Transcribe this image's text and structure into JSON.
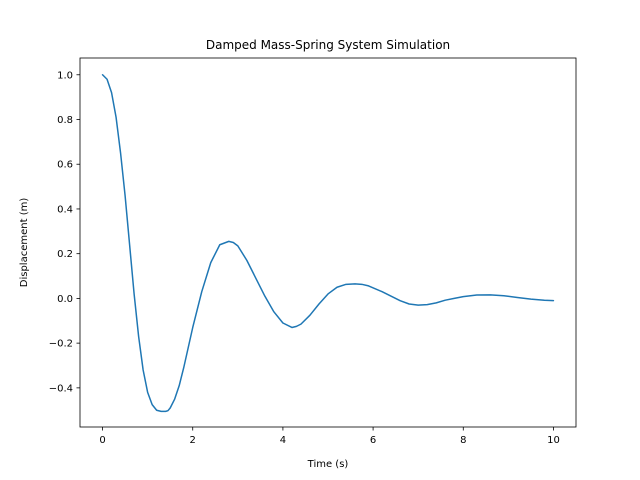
{
  "chart_data": {
    "type": "line",
    "title": "Damped Mass-Spring System Simulation",
    "xlabel": "Time (s)",
    "ylabel": "Displacement (m)",
    "xlim": [
      -0.5,
      10.5
    ],
    "ylim": [
      -0.575,
      1.075
    ],
    "xticks": [
      0,
      2,
      4,
      6,
      8,
      10
    ],
    "yticks": [
      -0.4,
      -0.2,
      0.0,
      0.2,
      0.4,
      0.6,
      0.8,
      1.0
    ],
    "xtick_labels": [
      "0",
      "2",
      "4",
      "6",
      "8",
      "10"
    ],
    "ytick_labels": [
      "−0.4",
      "−0.2",
      "0.0",
      "0.2",
      "0.4",
      "0.6",
      "0.8",
      "1.0"
    ],
    "grid": false,
    "line_color": "#1f77b4",
    "series": [
      {
        "x": [
          0,
          0.1,
          0.2,
          0.3,
          0.4,
          0.5,
          0.6,
          0.7,
          0.8,
          0.9,
          1.0,
          1.1,
          1.2,
          1.3,
          1.4,
          1.45,
          1.5,
          1.6,
          1.7,
          1.8,
          1.9,
          2.0,
          2.2,
          2.4,
          2.6,
          2.8,
          2.9,
          3.0,
          3.2,
          3.4,
          3.6,
          3.8,
          4.0,
          4.2,
          4.3,
          4.4,
          4.6,
          4.8,
          5.0,
          5.2,
          5.4,
          5.6,
          5.75,
          5.9,
          6.2,
          6.4,
          6.6,
          6.8,
          7.0,
          7.2,
          7.4,
          7.6,
          7.8,
          8.0,
          8.3,
          8.6,
          8.9,
          9.2,
          9.5,
          9.8,
          10.0
        ],
        "y": [
          1.0,
          0.98,
          0.92,
          0.81,
          0.65,
          0.46,
          0.24,
          0.02,
          -0.17,
          -0.32,
          -0.42,
          -0.475,
          -0.5,
          -0.505,
          -0.505,
          -0.502,
          -0.49,
          -0.45,
          -0.39,
          -0.31,
          -0.22,
          -0.13,
          0.03,
          0.16,
          0.24,
          0.255,
          0.25,
          0.235,
          0.17,
          0.09,
          0.01,
          -0.06,
          -0.11,
          -0.13,
          -0.125,
          -0.115,
          -0.075,
          -0.025,
          0.02,
          0.05,
          0.063,
          0.065,
          0.063,
          0.056,
          0.03,
          0.01,
          -0.01,
          -0.025,
          -0.03,
          -0.028,
          -0.02,
          -0.008,
          0.0,
          0.008,
          0.015,
          0.016,
          0.012,
          0.004,
          -0.003,
          -0.008,
          -0.01
        ]
      }
    ]
  }
}
